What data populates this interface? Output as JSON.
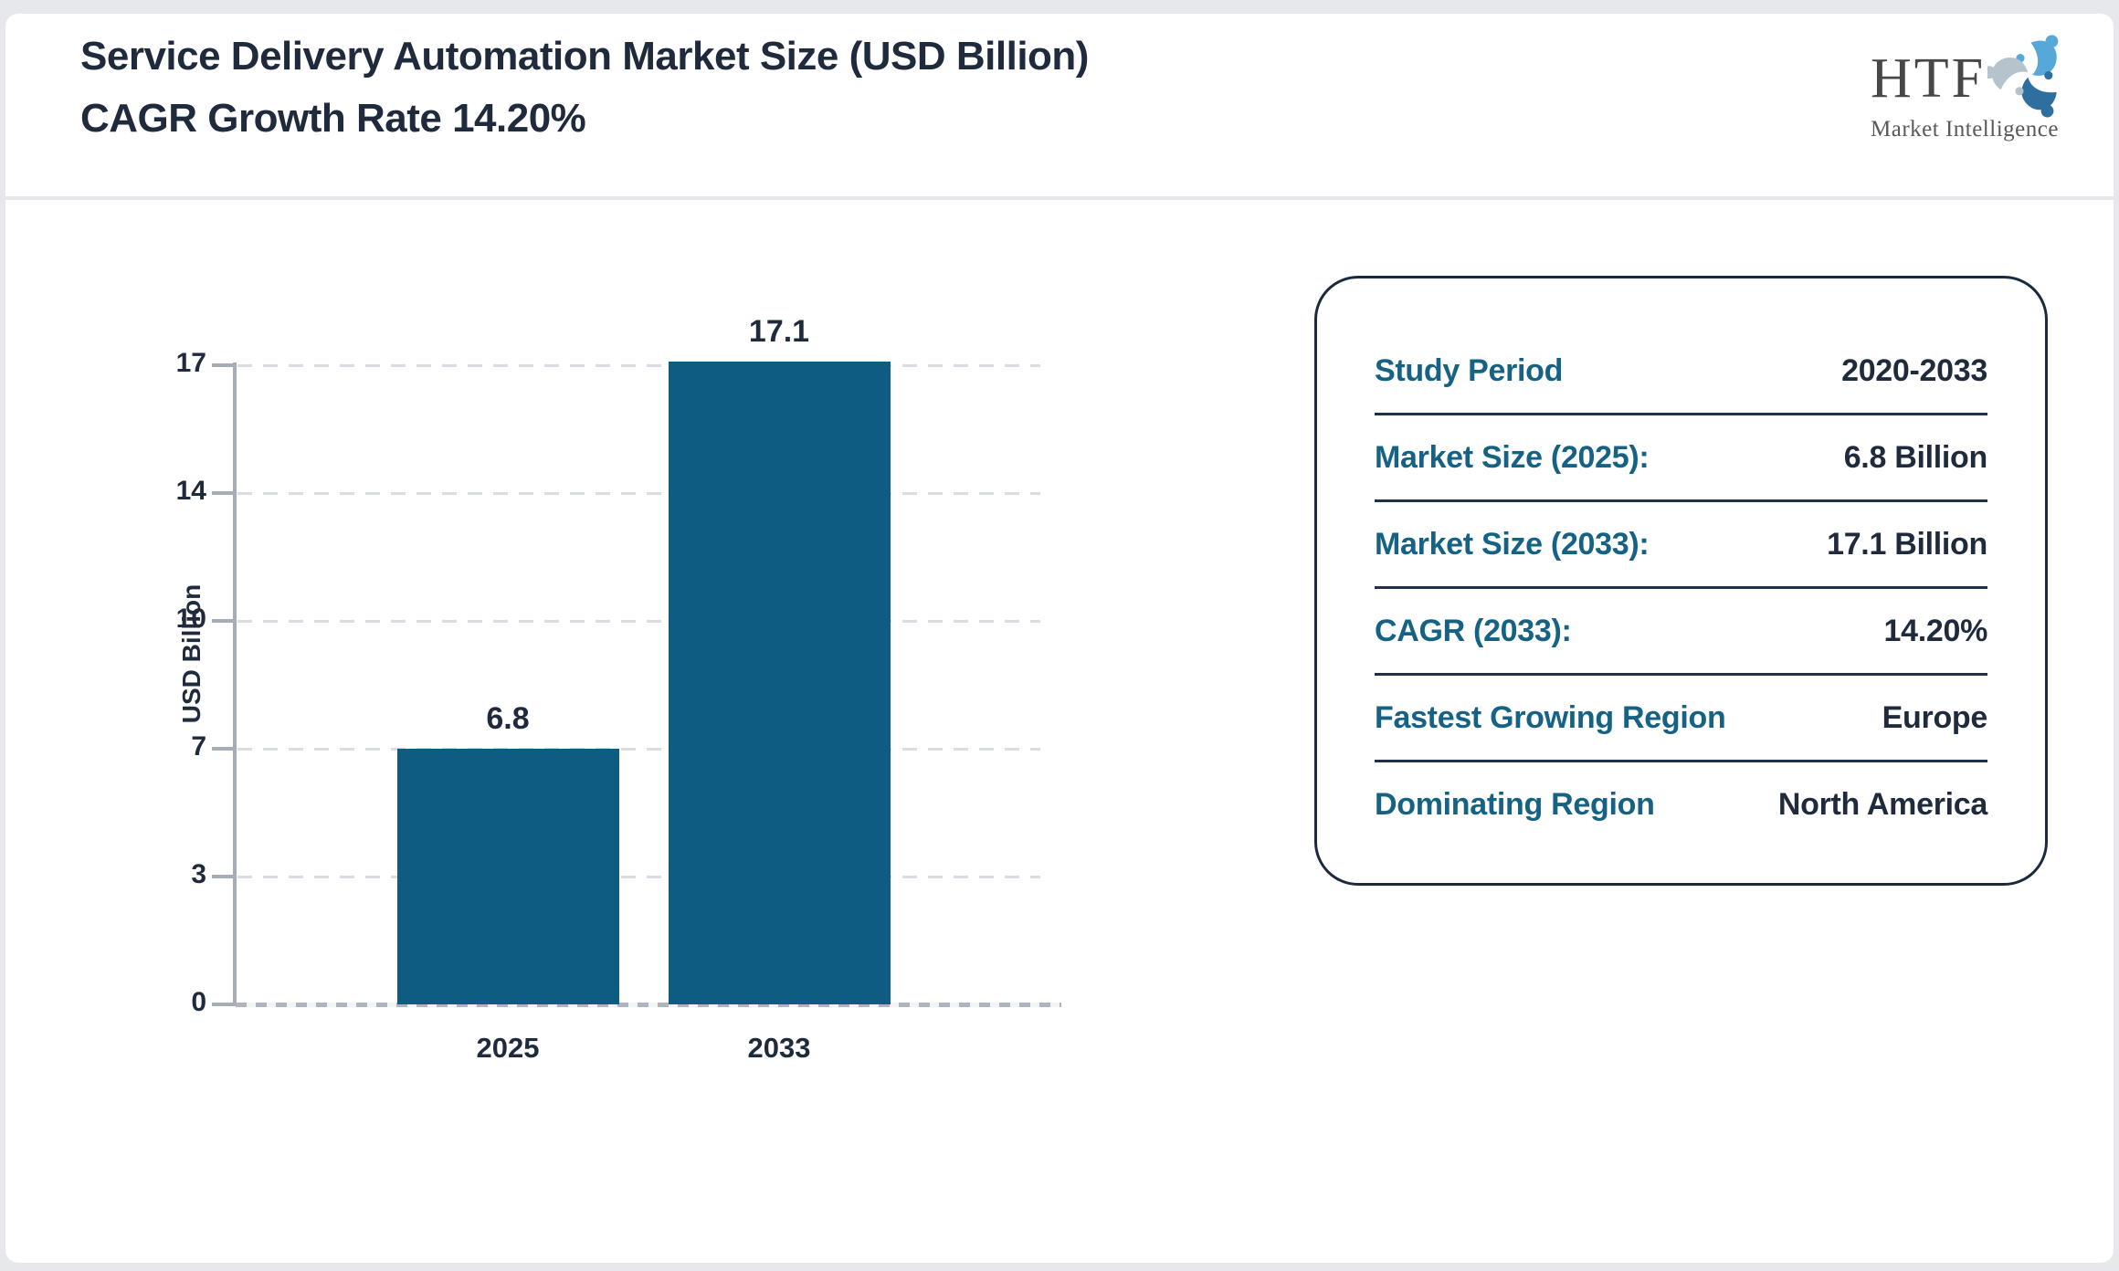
{
  "header": {
    "title": "Service Delivery Automation Market Size (USD Billion) CAGR Growth Rate 14.20%"
  },
  "logo": {
    "name": "HTF",
    "subtitle": "Market Intelligence",
    "colors": {
      "light_blue": "#56a8d8",
      "steel_blue": "#2f6f9f",
      "gray": "#b7c3cc"
    }
  },
  "chart_data": {
    "type": "bar",
    "categories": [
      "2025",
      "2033"
    ],
    "values": [
      6.8,
      17.1
    ],
    "value_labels": [
      "6.8",
      "17.1"
    ],
    "title": "",
    "xlabel": "",
    "ylabel": "USD Billion",
    "yticks": [
      "0",
      "3",
      "7",
      "10",
      "14",
      "17"
    ],
    "ylim": [
      0,
      17
    ],
    "grid": "horizontal dashed",
    "legend": "none",
    "bar_color": "#0e5c82"
  },
  "info_panel": {
    "rows": [
      {
        "label": "Study Period",
        "value": "2020-2033"
      },
      {
        "label": "Market Size (2025):",
        "value": "6.8 Billion"
      },
      {
        "label": "Market Size (2033):",
        "value": "17.1 Billion"
      },
      {
        "label": "CAGR (2033):",
        "value": "14.20%"
      },
      {
        "label": "Fastest Growing Region",
        "value": "Europe"
      },
      {
        "label": "Dominating Region",
        "value": "North America"
      }
    ]
  }
}
